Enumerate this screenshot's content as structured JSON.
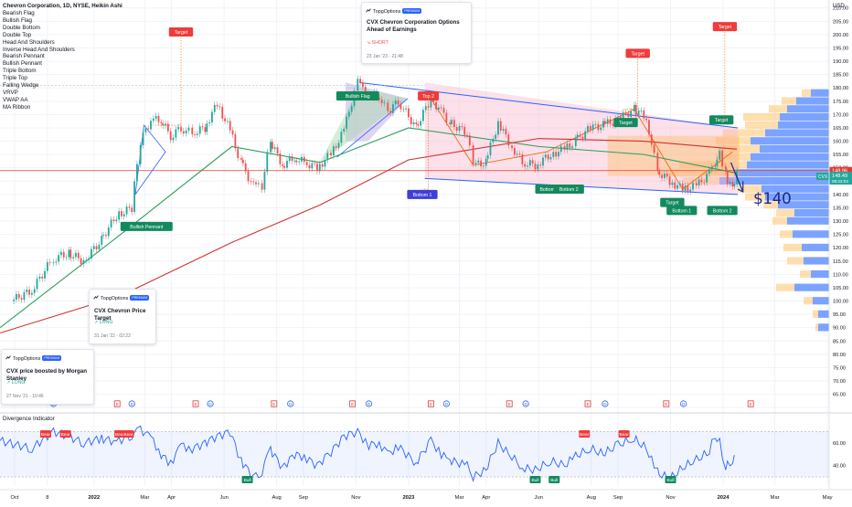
{
  "header": {
    "title": "Chevron Corporation, 1D, NYSE, Heikin Ashi",
    "currency": "USD"
  },
  "indicator_legend": [
    "Bearish Flag",
    "Bullish Flag",
    "Double Bottom",
    "Double Top",
    "Head And Shoulders",
    "Inverse Head And Shoulders",
    "Bearish Pennant",
    "Bullish Pennant",
    "Triple Bottom",
    "Triple Top",
    "Falling Wedge",
    "VRVP",
    "VWAP AA",
    "MA Ribbon"
  ],
  "price_tag": {
    "symbol": "CVX",
    "price": "148.49",
    "countdown": "08:22:04",
    "line_price": "148.96"
  },
  "annotation_140": "$140",
  "pattern_labels": [
    {
      "text": "Bullish Pennant",
      "kind": "bull",
      "price": 128,
      "date": "2022-03-03"
    },
    {
      "text": "Target",
      "kind": "bear",
      "price": 201,
      "date": "2022-04-12"
    },
    {
      "text": "Bullish Flag",
      "kind": "bull",
      "price": 177,
      "date": "2022-11-03"
    },
    {
      "text": "Top 2",
      "kind": "bear",
      "price": 177,
      "date": "2023-01-24"
    },
    {
      "text": "Bottom 1",
      "kind": "blue",
      "price": 140,
      "date": "2023-01-17"
    },
    {
      "text": "Bottom",
      "kind": "bull",
      "price": 142,
      "date": "2023-06-11"
    },
    {
      "text": "Bottom 2",
      "kind": "bull",
      "price": 142,
      "date": "2023-07-06"
    },
    {
      "text": "Target",
      "kind": "bull",
      "price": 167,
      "date": "2023-09-10"
    },
    {
      "text": "Target",
      "kind": "bear",
      "price": 193,
      "date": "2023-09-24"
    },
    {
      "text": "Target",
      "kind": "bull",
      "price": 137,
      "date": "2023-11-03"
    },
    {
      "text": "Bottom 1",
      "kind": "bull",
      "price": 134,
      "date": "2023-11-14"
    },
    {
      "text": "Target",
      "kind": "bull",
      "price": 168,
      "date": "2023-12-30"
    },
    {
      "text": "Target",
      "kind": "bear",
      "price": 203,
      "date": "2024-01-03"
    },
    {
      "text": "Bottom 2",
      "kind": "bull",
      "price": 134,
      "date": "2023-12-31"
    }
  ],
  "ideas": [
    {
      "author": "TopgOptions",
      "badge": "PREMIUM",
      "title": "CVX Chevron Corporation Options Ahead of Earnings",
      "signal": "SHORT",
      "time": "23 Jan '23 - 21:48"
    },
    {
      "author": "TopgOptions",
      "badge": "PREMIUM",
      "title": "CVX Chevron Price Target",
      "signal": "LONG",
      "time": "31 Jan '22 - 02:22"
    },
    {
      "author": "TopgOptions",
      "badge": "PREMIUM",
      "title": "CVX price boosted by Morgan Stanley",
      "signal": "LONG",
      "time": "27 Nov '21 - 10:46"
    }
  ],
  "events": [
    {
      "type": "D",
      "date": "2021-11-15"
    },
    {
      "type": "D",
      "date": "2022-02-14"
    },
    {
      "type": "E",
      "date": "2022-01-28"
    },
    {
      "type": "E",
      "date": "2022-04-29"
    },
    {
      "type": "D",
      "date": "2022-05-16"
    },
    {
      "type": "E",
      "date": "2022-07-29"
    },
    {
      "type": "D",
      "date": "2022-08-17"
    },
    {
      "type": "E",
      "date": "2022-10-28"
    },
    {
      "type": "D",
      "date": "2022-11-16"
    },
    {
      "type": "E",
      "date": "2023-01-27"
    },
    {
      "type": "D",
      "date": "2023-02-14"
    },
    {
      "type": "E",
      "date": "2023-04-28"
    },
    {
      "type": "D",
      "date": "2023-05-17"
    },
    {
      "type": "E",
      "date": "2023-07-28"
    },
    {
      "type": "D",
      "date": "2023-08-17"
    },
    {
      "type": "E",
      "date": "2023-10-27"
    },
    {
      "type": "D",
      "date": "2023-11-16"
    },
    {
      "type": "E",
      "date": "2024-02-02"
    }
  ],
  "colors": {
    "up": "#26a69a",
    "down": "#ef5350",
    "ma_green": "#2e9e5b",
    "ma_red": "#d32f2f",
    "vwap_orange": "#ef6c00",
    "channel_blue": "#2962ff",
    "label_bull": "#138a5e",
    "label_bear": "#ef3b3b",
    "label_blue": "#3f3fd6",
    "profile_blue": "#5b8cff",
    "profile_orange": "#ffb74d",
    "rsi": "#2962ff"
  },
  "chart_data": [
    {
      "type": "line",
      "title": "Chevron Corporation, 1D, NYSE, Heikin Ashi",
      "xlabel": "",
      "ylabel": "USD",
      "x_ticks": [
        "Oct",
        "8",
        "2022",
        "Mar",
        "Apr",
        "Jun",
        "Aug",
        "Sep",
        "Nov",
        "2023",
        "Mar",
        "Apr",
        "Jun",
        "Aug",
        "Sep",
        "Nov",
        "2024",
        "Mar",
        "May"
      ],
      "y_ticks": [
        60,
        65,
        70,
        75,
        80,
        85,
        90,
        95,
        100,
        105,
        110,
        115,
        120,
        125,
        130,
        135,
        140,
        145,
        150,
        155,
        160,
        165,
        170,
        175,
        180,
        185,
        190,
        195,
        200,
        205,
        210
      ],
      "ylim": [
        58,
        213
      ],
      "xlim": [
        "2021-09-14",
        "2024-05-03"
      ],
      "grid": true,
      "series": [
        {
          "type": "candlestick",
          "x": [
            "2021-09-27",
            "2021-10-21",
            "2021-11-15",
            "2021-12-03",
            "2021-12-20",
            "2022-01-10",
            "2022-01-27",
            "2022-02-14",
            "2022-02-24",
            "2022-03-08",
            "2022-03-20",
            "2022-03-31",
            "2022-04-12",
            "2022-04-25",
            "2022-05-10",
            "2022-05-24",
            "2022-06-08",
            "2022-06-21",
            "2022-07-05",
            "2022-07-15",
            "2022-07-25",
            "2022-08-08",
            "2022-08-22",
            "2022-09-02",
            "2022-09-17",
            "2022-10-03",
            "2022-10-18",
            "2022-11-03",
            "2022-11-16",
            "2022-11-28",
            "2022-12-08",
            "2022-12-20",
            "2023-01-10",
            "2023-01-27",
            "2023-02-08",
            "2023-02-18",
            "2023-03-10",
            "2023-03-17",
            "2023-04-01",
            "2023-04-15",
            "2023-05-01",
            "2023-05-13",
            "2023-05-28",
            "2023-06-15",
            "2023-07-01",
            "2023-07-14",
            "2023-07-31",
            "2023-08-15",
            "2023-09-01",
            "2023-09-20",
            "2023-10-04",
            "2023-10-17",
            "2023-10-31",
            "2023-11-15",
            "2023-12-01",
            "2023-12-16",
            "2023-12-23",
            "2023-12-28",
            "2024-01-04",
            "2024-01-12",
            "2024-01-17"
          ],
          "close": [
            100,
            104,
            116,
            118,
            115,
            123,
            132,
            135,
            160,
            168,
            168,
            162,
            165,
            163,
            165,
            174,
            164,
            152,
            143,
            143,
            160,
            151,
            154,
            152,
            150,
            155,
            164,
            182,
            177,
            177,
            171,
            175,
            165,
            176,
            171,
            167,
            163,
            151,
            152,
            167,
            158,
            152,
            151,
            155,
            157,
            160,
            165,
            166,
            168,
            172,
            169,
            149,
            145,
            142,
            143,
            148,
            150,
            155,
            147,
            142,
            149
          ]
        },
        {
          "name": "",
          "type": "ma",
          "x": [
            "2021-09-14",
            "2022-02-01",
            "2022-06-10",
            "2022-09-20",
            "2023-01-01",
            "2023-06-01",
            "2023-10-01",
            "2024-01-17"
          ],
          "values": [
            90,
            125,
            158,
            152,
            165,
            158,
            155,
            148
          ]
        },
        {
          "name": "",
          "type": "ma",
          "x": [
            "2021-09-14",
            "2022-02-01",
            "2022-06-10",
            "2022-09-20",
            "2023-01-01",
            "2023-06-01",
            "2023-10-01",
            "2024-01-17"
          ],
          "values": [
            88,
            102,
            122,
            136,
            153,
            161,
            160,
            157
          ]
        }
      ]
    },
    {
      "type": "line",
      "title": "Divergence Indicator",
      "xlabel": "",
      "ylabel": "",
      "y_ticks": [
        40,
        60
      ],
      "ylim": [
        22,
        76
      ],
      "band": [
        30,
        70
      ],
      "series": [
        {
          "name": "",
          "x": [
            "2021-09-14",
            "2021-10-21",
            "2021-11-15",
            "2021-12-03",
            "2021-12-20",
            "2022-01-10",
            "2022-01-27",
            "2022-02-14",
            "2022-02-24",
            "2022-03-08",
            "2022-03-20",
            "2022-03-31",
            "2022-04-12",
            "2022-04-25",
            "2022-05-10",
            "2022-05-24",
            "2022-06-08",
            "2022-06-21",
            "2022-07-05",
            "2022-07-15",
            "2022-07-25",
            "2022-08-08",
            "2022-08-22",
            "2022-09-02",
            "2022-09-17",
            "2022-10-03",
            "2022-10-18",
            "2022-11-03",
            "2022-11-16",
            "2022-11-28",
            "2022-12-08",
            "2022-12-20",
            "2023-01-10",
            "2023-01-27",
            "2023-02-08",
            "2023-02-18",
            "2023-03-10",
            "2023-03-17",
            "2023-04-01",
            "2023-04-15",
            "2023-05-01",
            "2023-05-13",
            "2023-05-28",
            "2023-06-15",
            "2023-07-01",
            "2023-07-14",
            "2023-07-31",
            "2023-08-15",
            "2023-09-01",
            "2023-09-20",
            "2023-10-04",
            "2023-10-17",
            "2023-10-31",
            "2023-11-15",
            "2023-12-01",
            "2023-12-16",
            "2023-12-23",
            "2023-12-28",
            "2024-01-04",
            "2024-01-12",
            "2024-01-17"
          ],
          "values": [
            62,
            55,
            70,
            66,
            60,
            64,
            61,
            67,
            72,
            65,
            50,
            42,
            58,
            55,
            60,
            66,
            70,
            45,
            30,
            35,
            55,
            38,
            50,
            48,
            40,
            52,
            66,
            70,
            58,
            60,
            50,
            57,
            42,
            62,
            50,
            45,
            40,
            30,
            36,
            60,
            48,
            38,
            36,
            44,
            40,
            48,
            55,
            50,
            58,
            64,
            55,
            34,
            28,
            38,
            45,
            52,
            66,
            60,
            38,
            44,
            58
          ]
        }
      ],
      "markers": [
        {
          "text": "Bear",
          "date": "2021-11-06"
        },
        {
          "text": "Bear",
          "date": "2021-11-29"
        },
        {
          "text": "Bear",
          "date": "2022-01-31"
        },
        {
          "text": "Bear",
          "date": "2022-02-10"
        },
        {
          "text": "Bull",
          "date": "2022-06-28"
        },
        {
          "text": "Bull",
          "date": "2023-05-28"
        },
        {
          "text": "Bull",
          "date": "2023-06-19"
        },
        {
          "text": "Bear",
          "date": "2023-07-24"
        },
        {
          "text": "Bear",
          "date": "2023-09-08"
        },
        {
          "text": "Bull",
          "date": "2023-11-01"
        }
      ]
    }
  ]
}
